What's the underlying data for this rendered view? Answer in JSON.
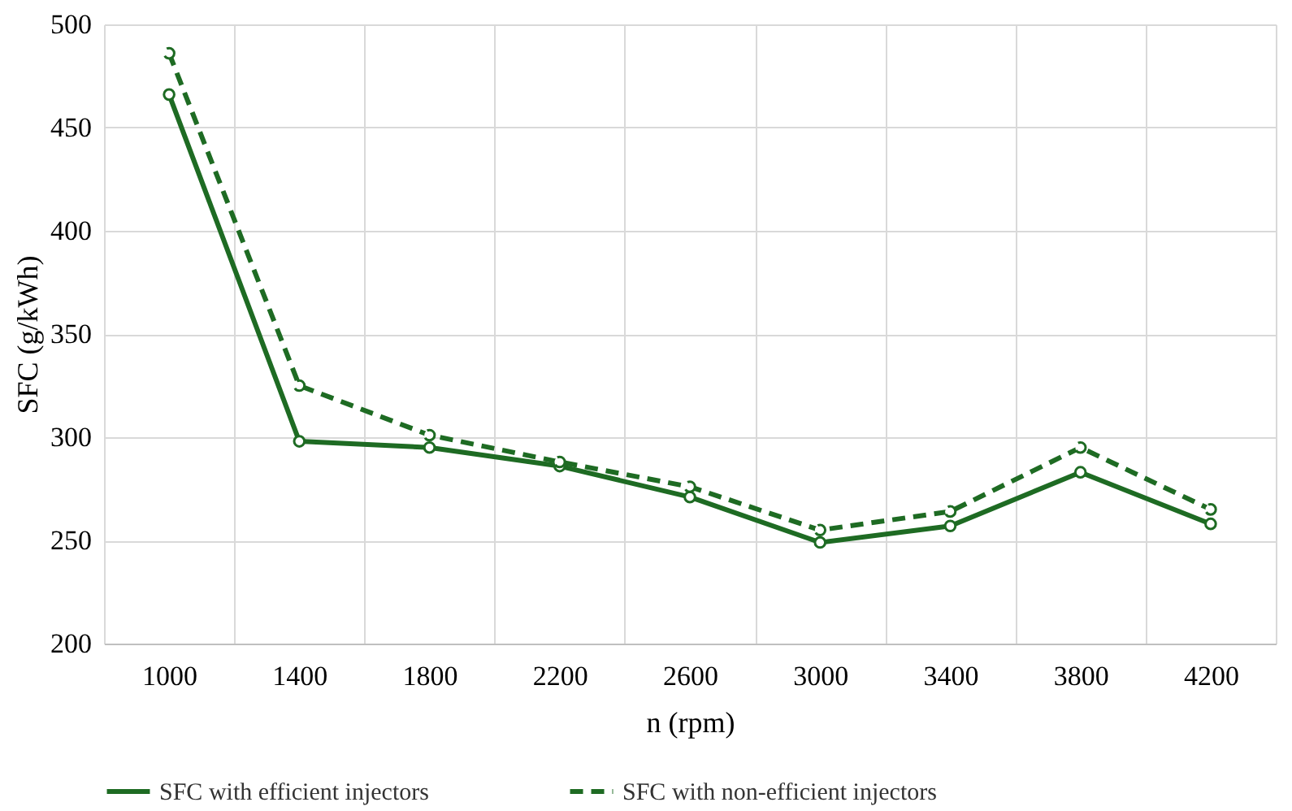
{
  "chart_data": {
    "type": "line",
    "xlabel": "n (rpm)",
    "ylabel": "SFC (g/kWh)",
    "categories": [
      "1000",
      "1400",
      "1800",
      "2200",
      "2600",
      "3000",
      "3400",
      "3800",
      "4200"
    ],
    "series": [
      {
        "name": "SFC with efficient injectors",
        "color": "#1e6b23",
        "line_style": "solid",
        "values": [
          466,
          298,
          295,
          286,
          271,
          249,
          257,
          283,
          258
        ]
      },
      {
        "name": "SFC with non-efficient injectors",
        "color": "#1e6b23",
        "line_style": "dashed",
        "values": [
          486,
          325,
          301,
          288,
          276,
          255,
          264,
          295,
          265
        ]
      }
    ],
    "ylim": [
      200,
      500
    ],
    "yticks": [
      200,
      250,
      300,
      350,
      400,
      450,
      500
    ],
    "grid": true,
    "legend": "bottom",
    "marker": "circle"
  }
}
